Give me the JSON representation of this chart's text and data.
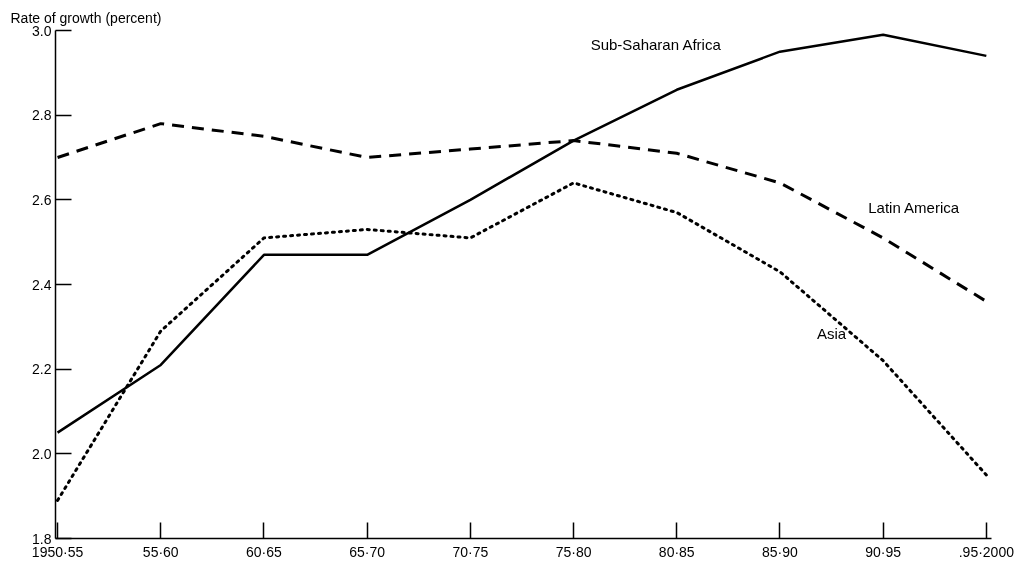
{
  "chart_data": {
    "type": "line",
    "ylabel": "Rate of growth (percent)",
    "categories": [
      "1950·55",
      "55·60",
      "60·65",
      "65·70",
      "70·75",
      "75·80",
      "80·85",
      "85·90",
      "90·95",
      ".95·2000"
    ],
    "ylim": [
      1.8,
      3.0
    ],
    "yticks": [
      1.8,
      {
        "value": 2,
        "label": "2.0"
      },
      2.2,
      2.4,
      2.6,
      2.8,
      {
        "value": 3,
        "label": "3.0"
      }
    ],
    "grid": false,
    "legend": false,
    "series": [
      {
        "name": "Sub-Saharan Africa",
        "color": "#000000",
        "line_style": "solid",
        "values": [
          2.05,
          2.21,
          2.47,
          2.47,
          2.6,
          2.74,
          2.86,
          2.95,
          2.99,
          2.94
        ]
      },
      {
        "name": "Latin America",
        "color": "#000000",
        "line_style": "dashed",
        "values": [
          2.7,
          2.78,
          2.75,
          2.7,
          2.72,
          2.74,
          2.71,
          2.64,
          2.51,
          2.36
        ]
      },
      {
        "name": "Asia",
        "color": "#000000",
        "line_style": "dotted",
        "values": [
          1.89,
          2.29,
          2.51,
          2.53,
          2.51,
          2.64,
          2.57,
          2.43,
          2.22,
          1.95
        ]
      }
    ]
  }
}
